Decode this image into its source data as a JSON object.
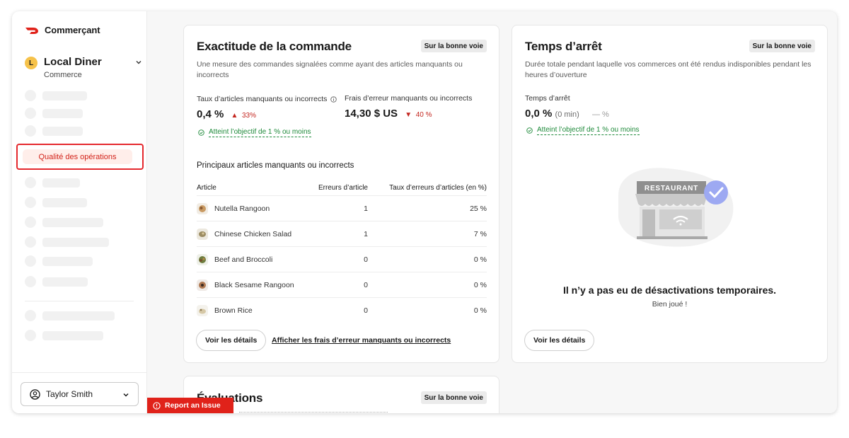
{
  "brand": {
    "name": "Commerçant"
  },
  "store": {
    "initial": "L",
    "name": "Local Diner",
    "type": "Commerce"
  },
  "nav": {
    "active_label": "Qualité des opérations"
  },
  "user": {
    "name": "Taylor Smith"
  },
  "report": {
    "label": "Report an Issue"
  },
  "accuracy": {
    "title": "Exactitude de la commande",
    "badge": "Sur la bonne voie",
    "description_line1": "Une mesure des commandes signalées comme ayant des articles manquants ou",
    "description_line2": "incorrects",
    "metric1_label": "Taux d’articles manquants ou incorrects",
    "metric1_value": "0,4 %",
    "metric1_change": "33%",
    "metric2_label": "Frais d’erreur manquants ou incorrects",
    "metric2_value": "14,30 $ US",
    "metric2_change": "40 %",
    "goal": "Atteint l’objectif de 1 % ou moins",
    "table_title": "Principaux articles manquants ou incorrects",
    "columns": [
      "Article",
      "Erreurs d’article",
      "Taux d’erreurs d’articles (en %)"
    ],
    "rows": [
      {
        "item": "Nutella Rangoon",
        "errors": "1",
        "rate": "25 %"
      },
      {
        "item": "Chinese Chicken Salad",
        "errors": "1",
        "rate": "7 %"
      },
      {
        "item": "Beef and Broccoli",
        "errors": "0",
        "rate": "0 %"
      },
      {
        "item": "Black Sesame Rangoon",
        "errors": "0",
        "rate": "0 %"
      },
      {
        "item": "Brown Rice",
        "errors": "0",
        "rate": "0 %"
      }
    ],
    "details_button": "Voir les détails",
    "fees_link": "Afficher les frais d’erreur manquants ou incorrects"
  },
  "downtime": {
    "title": "Temps d’arrêt",
    "badge": "Sur la bonne voie",
    "description_line1": "Durée totale pendant laquelle vos commerces ont été rendus indisponibles pendant les",
    "description_line2": "heures d’ouverture",
    "metric_label": "Temps d’arrêt",
    "metric_value": "0,0 %",
    "metric_sub": "(0 min)",
    "metric_change": "— %",
    "goal": "Atteint l’objectif de 1 % ou moins",
    "illustration_sign": "RESTAURANT",
    "empty_title": "Il n’y a pas eu de désactivations temporaires.",
    "empty_sub": "Bien joué !",
    "details_button": "Voir les détails"
  },
  "evaluations": {
    "title": "Évaluations",
    "badge": "Sur la bonne voie"
  },
  "colors": {
    "accent": "#e0221a",
    "goal_green": "#1e8a3a",
    "active_bg": "#ffeeea"
  }
}
